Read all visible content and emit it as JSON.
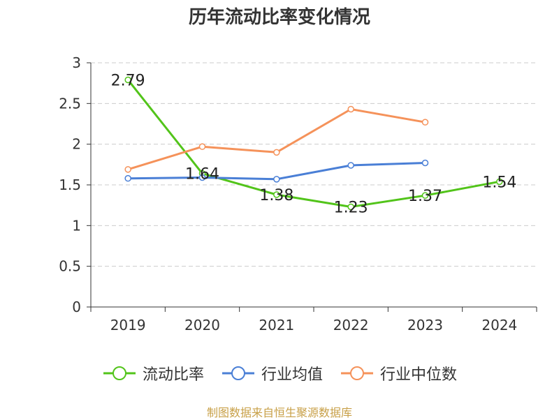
{
  "chart_data": {
    "type": "line",
    "title": "历年流动比率变化情况",
    "categories": [
      "2019",
      "2020",
      "2021",
      "2022",
      "2023",
      "2024"
    ],
    "ylim": [
      0,
      3
    ],
    "yticks": [
      "0",
      "0.5",
      "1",
      "1.5",
      "2",
      "2.5",
      "3"
    ],
    "grid": true,
    "legend_position": "bottom",
    "series": [
      {
        "name": "流动比率",
        "color": "#52c41a",
        "values": [
          2.79,
          1.64,
          1.38,
          1.23,
          1.37,
          1.54
        ],
        "labels": [
          "2.79",
          "1.64",
          "1.38",
          "1.23",
          "1.37",
          "1.54"
        ]
      },
      {
        "name": "行业均值",
        "color": "#4a7fd6",
        "values": [
          1.58,
          1.59,
          1.57,
          1.74,
          1.77,
          null
        ]
      },
      {
        "name": "行业中位数",
        "color": "#f5925a",
        "values": [
          1.69,
          1.97,
          1.9,
          2.43,
          2.27,
          null
        ]
      }
    ]
  },
  "source": "制图数据来自恒生聚源数据库"
}
